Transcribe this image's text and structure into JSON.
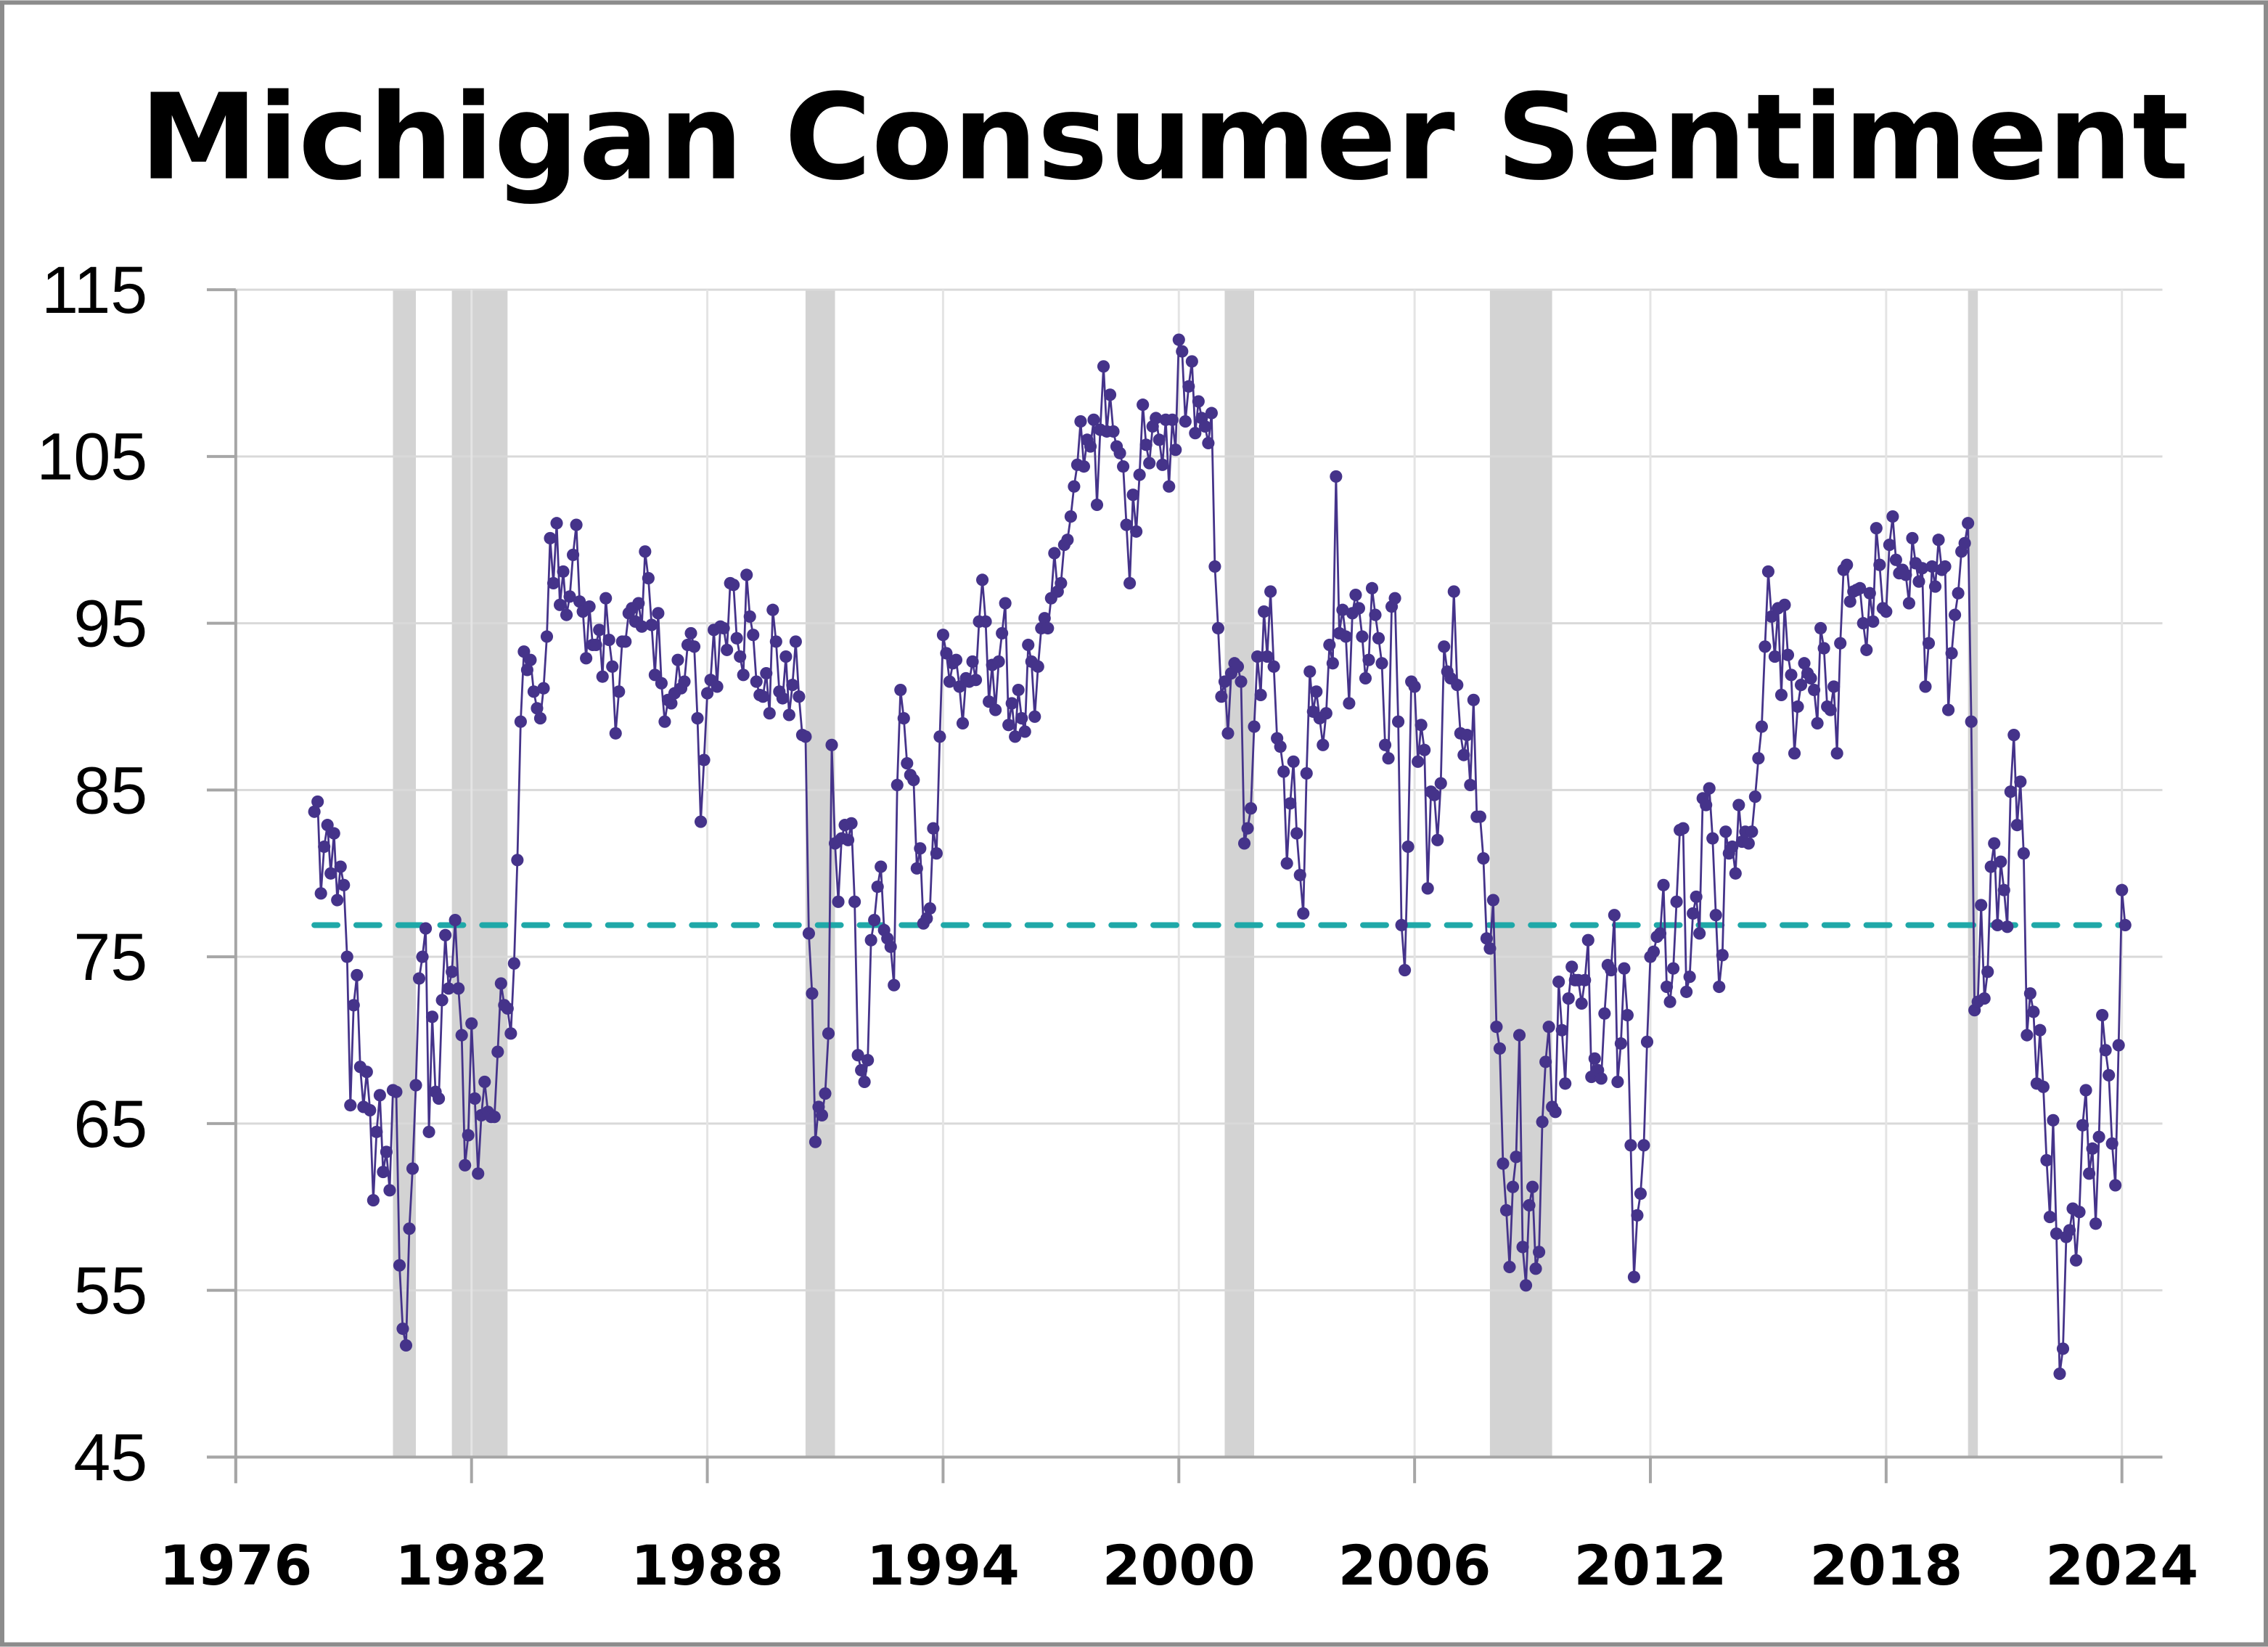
{
  "chart_data": {
    "type": "line",
    "title": "Michigan Consumer Sentiment",
    "xlabel": "",
    "ylabel": "",
    "ylim": [
      45,
      115
    ],
    "xlim": [
      1976,
      2024
    ],
    "y_ticks": [
      "115",
      "105",
      "95",
      "85",
      "75",
      "65",
      "55",
      "45"
    ],
    "x_ticks": [
      "1976",
      "1982",
      "1988",
      "1994",
      "2000",
      "2006",
      "2012",
      "2018",
      "2024"
    ],
    "grid": true,
    "legend": "none",
    "series_color": "#45338a",
    "reference_line": {
      "value": 76.9,
      "style": "dashed",
      "color": "#1fa8a8"
    },
    "recession_color": "#d3d3d3",
    "recessions": [
      [
        "1980-01",
        "1980-07"
      ],
      [
        "1981-07",
        "1982-11"
      ],
      [
        "1990-07",
        "1991-03"
      ],
      [
        "2001-03",
        "2001-11"
      ],
      [
        "2007-12",
        "2009-06"
      ],
      [
        "2020-02",
        "2020-04"
      ]
    ],
    "start": "1978-01",
    "frequency": "monthly",
    "values": [
      83.7,
      84.3,
      78.8,
      81.6,
      82.9,
      80.0,
      82.4,
      78.4,
      80.4,
      79.3,
      75.0,
      66.1,
      72.1,
      73.9,
      68.4,
      66.0,
      68.1,
      65.8,
      60.4,
      64.5,
      66.7,
      62.1,
      63.3,
      61.0,
      67.0,
      66.9,
      56.5,
      52.7,
      51.7,
      58.7,
      62.3,
      67.3,
      73.7,
      75.0,
      76.7,
      64.5,
      71.4,
      66.9,
      66.5,
      72.4,
      76.3,
      73.1,
      74.1,
      77.2,
      73.1,
      70.3,
      62.5,
      64.3,
      71.0,
      66.5,
      62.0,
      65.5,
      67.5,
      65.7,
      65.4,
      65.4,
      69.3,
      73.4,
      72.1,
      71.9,
      70.4,
      74.6,
      80.8,
      89.1,
      93.3,
      92.2,
      92.8,
      90.9,
      89.9,
      89.3,
      91.1,
      94.2,
      100.1,
      97.4,
      101.0,
      96.1,
      98.1,
      95.5,
      96.6,
      99.1,
      100.9,
      96.3,
      95.7,
      92.9,
      96.0,
      93.7,
      93.7,
      94.6,
      91.8,
      96.5,
      94.0,
      92.4,
      88.4,
      90.9,
      93.9,
      93.9,
      95.6,
      95.9,
      95.1,
      96.2,
      94.8,
      99.3,
      97.7,
      94.9,
      91.9,
      95.6,
      91.4,
      89.1,
      90.4,
      90.2,
      90.8,
      92.8,
      91.1,
      91.5,
      93.7,
      94.4,
      93.6,
      89.3,
      83.1,
      86.8,
      90.8,
      91.6,
      94.6,
      91.2,
      94.8,
      94.7,
      93.4,
      97.4,
      97.3,
      94.1,
      93.0,
      91.9,
      97.9,
      95.4,
      94.3,
      91.5,
      90.7,
      90.6,
      92.0,
      89.6,
      95.8,
      93.9,
      90.9,
      90.5,
      93.0,
      89.5,
      91.3,
      93.9,
      90.6,
      88.3,
      88.2,
      76.4,
      72.8,
      63.9,
      66.0,
      65.5,
      66.8,
      70.4,
      87.7,
      81.8,
      78.3,
      82.1,
      82.9,
      82.0,
      83.0,
      78.3,
      69.1,
      68.2,
      67.5,
      68.8,
      76.0,
      77.2,
      79.2,
      80.4,
      76.6,
      76.1,
      75.6,
      73.3,
      85.3,
      91.0,
      89.3,
      86.6,
      85.9,
      85.6,
      80.3,
      81.5,
      77.0,
      77.3,
      77.9,
      82.7,
      81.2,
      88.2,
      94.3,
      93.2,
      91.5,
      92.6,
      92.8,
      91.2,
      89.0,
      91.7,
      91.5,
      92.7,
      91.6,
      95.1,
      97.6,
      95.1,
      90.3,
      92.5,
      89.8,
      92.7,
      94.4,
      96.2,
      88.9,
      90.2,
      88.2,
      91.0,
      89.3,
      88.5,
      93.7,
      92.7,
      89.4,
      92.4,
      94.7,
      95.3,
      94.7,
      96.5,
      99.2,
      96.9,
      97.4,
      99.7,
      100.0,
      101.4,
      103.2,
      104.5,
      107.1,
      104.4,
      106.0,
      105.6,
      107.2,
      102.1,
      106.6,
      110.4,
      106.5,
      108.7,
      106.5,
      105.6,
      105.2,
      104.4,
      100.9,
      97.4,
      102.7,
      100.5,
      103.9,
      108.1,
      105.7,
      104.6,
      106.8,
      107.3,
      106.0,
      104.5,
      107.2,
      103.2,
      107.2,
      105.4,
      112.0,
      111.3,
      107.1,
      109.2,
      110.7,
      106.4,
      108.3,
      107.3,
      106.8,
      105.8,
      107.6,
      98.4,
      94.7,
      90.6,
      91.5,
      88.4,
      92.0,
      92.6,
      92.4,
      91.5,
      81.8,
      82.7,
      83.9,
      88.8,
      93.0,
      90.7,
      95.7,
      93.0,
      96.9,
      92.4,
      88.1,
      87.6,
      86.1,
      80.6,
      84.2,
      86.7,
      82.4,
      79.9,
      77.6,
      86.0,
      92.1,
      89.7,
      90.9,
      89.3,
      87.7,
      89.6,
      93.7,
      92.6,
      103.8,
      94.4,
      95.8,
      94.2,
      90.2,
      95.6,
      96.7,
      95.9,
      94.2,
      91.7,
      92.8,
      97.1,
      95.5,
      94.1,
      92.6,
      87.7,
      86.9,
      96.0,
      96.5,
      89.1,
      76.9,
      74.2,
      81.6,
      91.5,
      91.2,
      86.7,
      88.9,
      87.4,
      79.1,
      84.9,
      84.7,
      82.0,
      85.4,
      93.6,
      92.1,
      91.7,
      96.9,
      91.3,
      88.4,
      87.1,
      88.3,
      85.3,
      90.4,
      83.4,
      83.4,
      80.9,
      76.1,
      75.5,
      78.4,
      70.8,
      69.5,
      62.6,
      59.8,
      56.4,
      61.2,
      63.0,
      70.3,
      57.6,
      55.3,
      60.1,
      61.2,
      56.3,
      57.3,
      65.1,
      68.7,
      70.8,
      66.0,
      65.7,
      73.5,
      70.6,
      67.4,
      72.5,
      74.4,
      73.6,
      73.6,
      72.2,
      73.6,
      76.0,
      67.8,
      68.9,
      68.2,
      67.7,
      71.6,
      74.5,
      74.2,
      77.5,
      67.5,
      69.8,
      74.3,
      71.5,
      63.7,
      55.8,
      59.5,
      60.8,
      63.7,
      69.9,
      75.0,
      75.3,
      76.2,
      76.4,
      79.3,
      73.2,
      72.3,
      74.3,
      78.3,
      82.6,
      82.7,
      72.9,
      73.8,
      77.6,
      78.6,
      76.4,
      84.5,
      84.1,
      85.1,
      82.1,
      77.5,
      73.2,
      75.1,
      82.5,
      81.2,
      81.6,
      80.0,
      84.1,
      81.9,
      82.5,
      81.8,
      82.5,
      84.6,
      86.9,
      88.8,
      93.6,
      98.1,
      95.4,
      93.0,
      95.9,
      90.7,
      96.1,
      93.1,
      91.9,
      87.2,
      90.0,
      91.3,
      92.6,
      92.0,
      91.7,
      91.0,
      89.0,
      94.7,
      93.5,
      90.0,
      89.8,
      91.2,
      87.2,
      93.8,
      98.2,
      98.5,
      96.3,
      96.9,
      97.0,
      97.1,
      95.0,
      93.4,
      96.8,
      95.1,
      100.7,
      98.5,
      95.9,
      95.7,
      99.7,
      101.4,
      98.8,
      98.0,
      98.2,
      97.9,
      96.2,
      100.1,
      98.6,
      97.5,
      98.3,
      91.2,
      93.8,
      98.4,
      97.2,
      100.0,
      98.2,
      98.4,
      89.8,
      93.2,
      95.5,
      96.8,
      99.3,
      99.8,
      101.0,
      89.1,
      71.8,
      72.3,
      78.1,
      72.5,
      74.1,
      80.4,
      81.8,
      76.9,
      80.7,
      79.0,
      76.8,
      84.9,
      88.3,
      82.9,
      85.5,
      81.2,
      70.3,
      72.8,
      71.7,
      67.4,
      70.6,
      67.2,
      62.8,
      59.4,
      65.2,
      58.4,
      50.0,
      51.5,
      58.2,
      58.6,
      59.9,
      56.8,
      59.7,
      64.9,
      67.0,
      62.0,
      63.5,
      59.0,
      64.2,
      71.5,
      69.4,
      67.9,
      63.8,
      61.3,
      69.7,
      79.0,
      76.9
    ]
  }
}
